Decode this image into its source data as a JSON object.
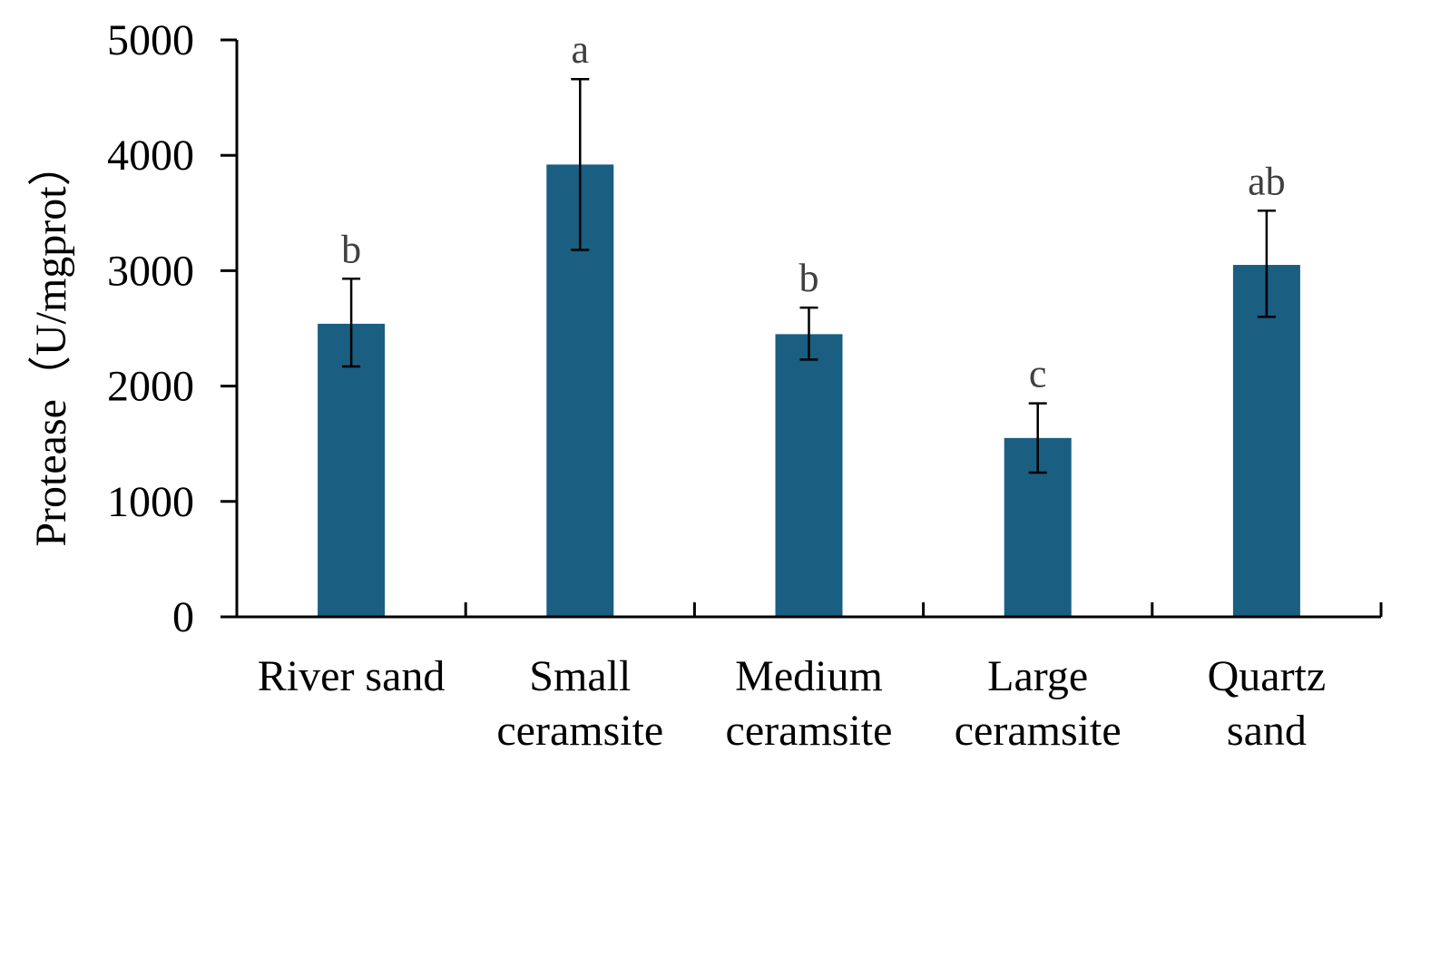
{
  "chart_data": {
    "type": "bar",
    "title": "",
    "xlabel": "",
    "ylabel": "Protease（U/mgprot）",
    "ylim": [
      0,
      5000
    ],
    "yticks": [
      "0",
      "1000",
      "2000",
      "3000",
      "4000",
      "5000"
    ],
    "categories": [
      [
        "River sand"
      ],
      [
        "Small",
        "ceramsite"
      ],
      [
        "Medium",
        "ceramsite"
      ],
      [
        "Large",
        "ceramsite"
      ],
      [
        "Quartz",
        "sand"
      ]
    ],
    "values": [
      2540,
      3920,
      2450,
      1550,
      3050
    ],
    "error_low": [
      2170,
      3180,
      2230,
      1250,
      2600
    ],
    "error_high": [
      2930,
      4660,
      2680,
      1850,
      3520
    ],
    "significance": [
      "b",
      "a",
      "b",
      "c",
      "ab"
    ],
    "grid": false,
    "legend": "none",
    "colors": {
      "bar": "#1a5e82",
      "axis": "#000000",
      "error": "#000000",
      "significance": "#404040"
    }
  }
}
